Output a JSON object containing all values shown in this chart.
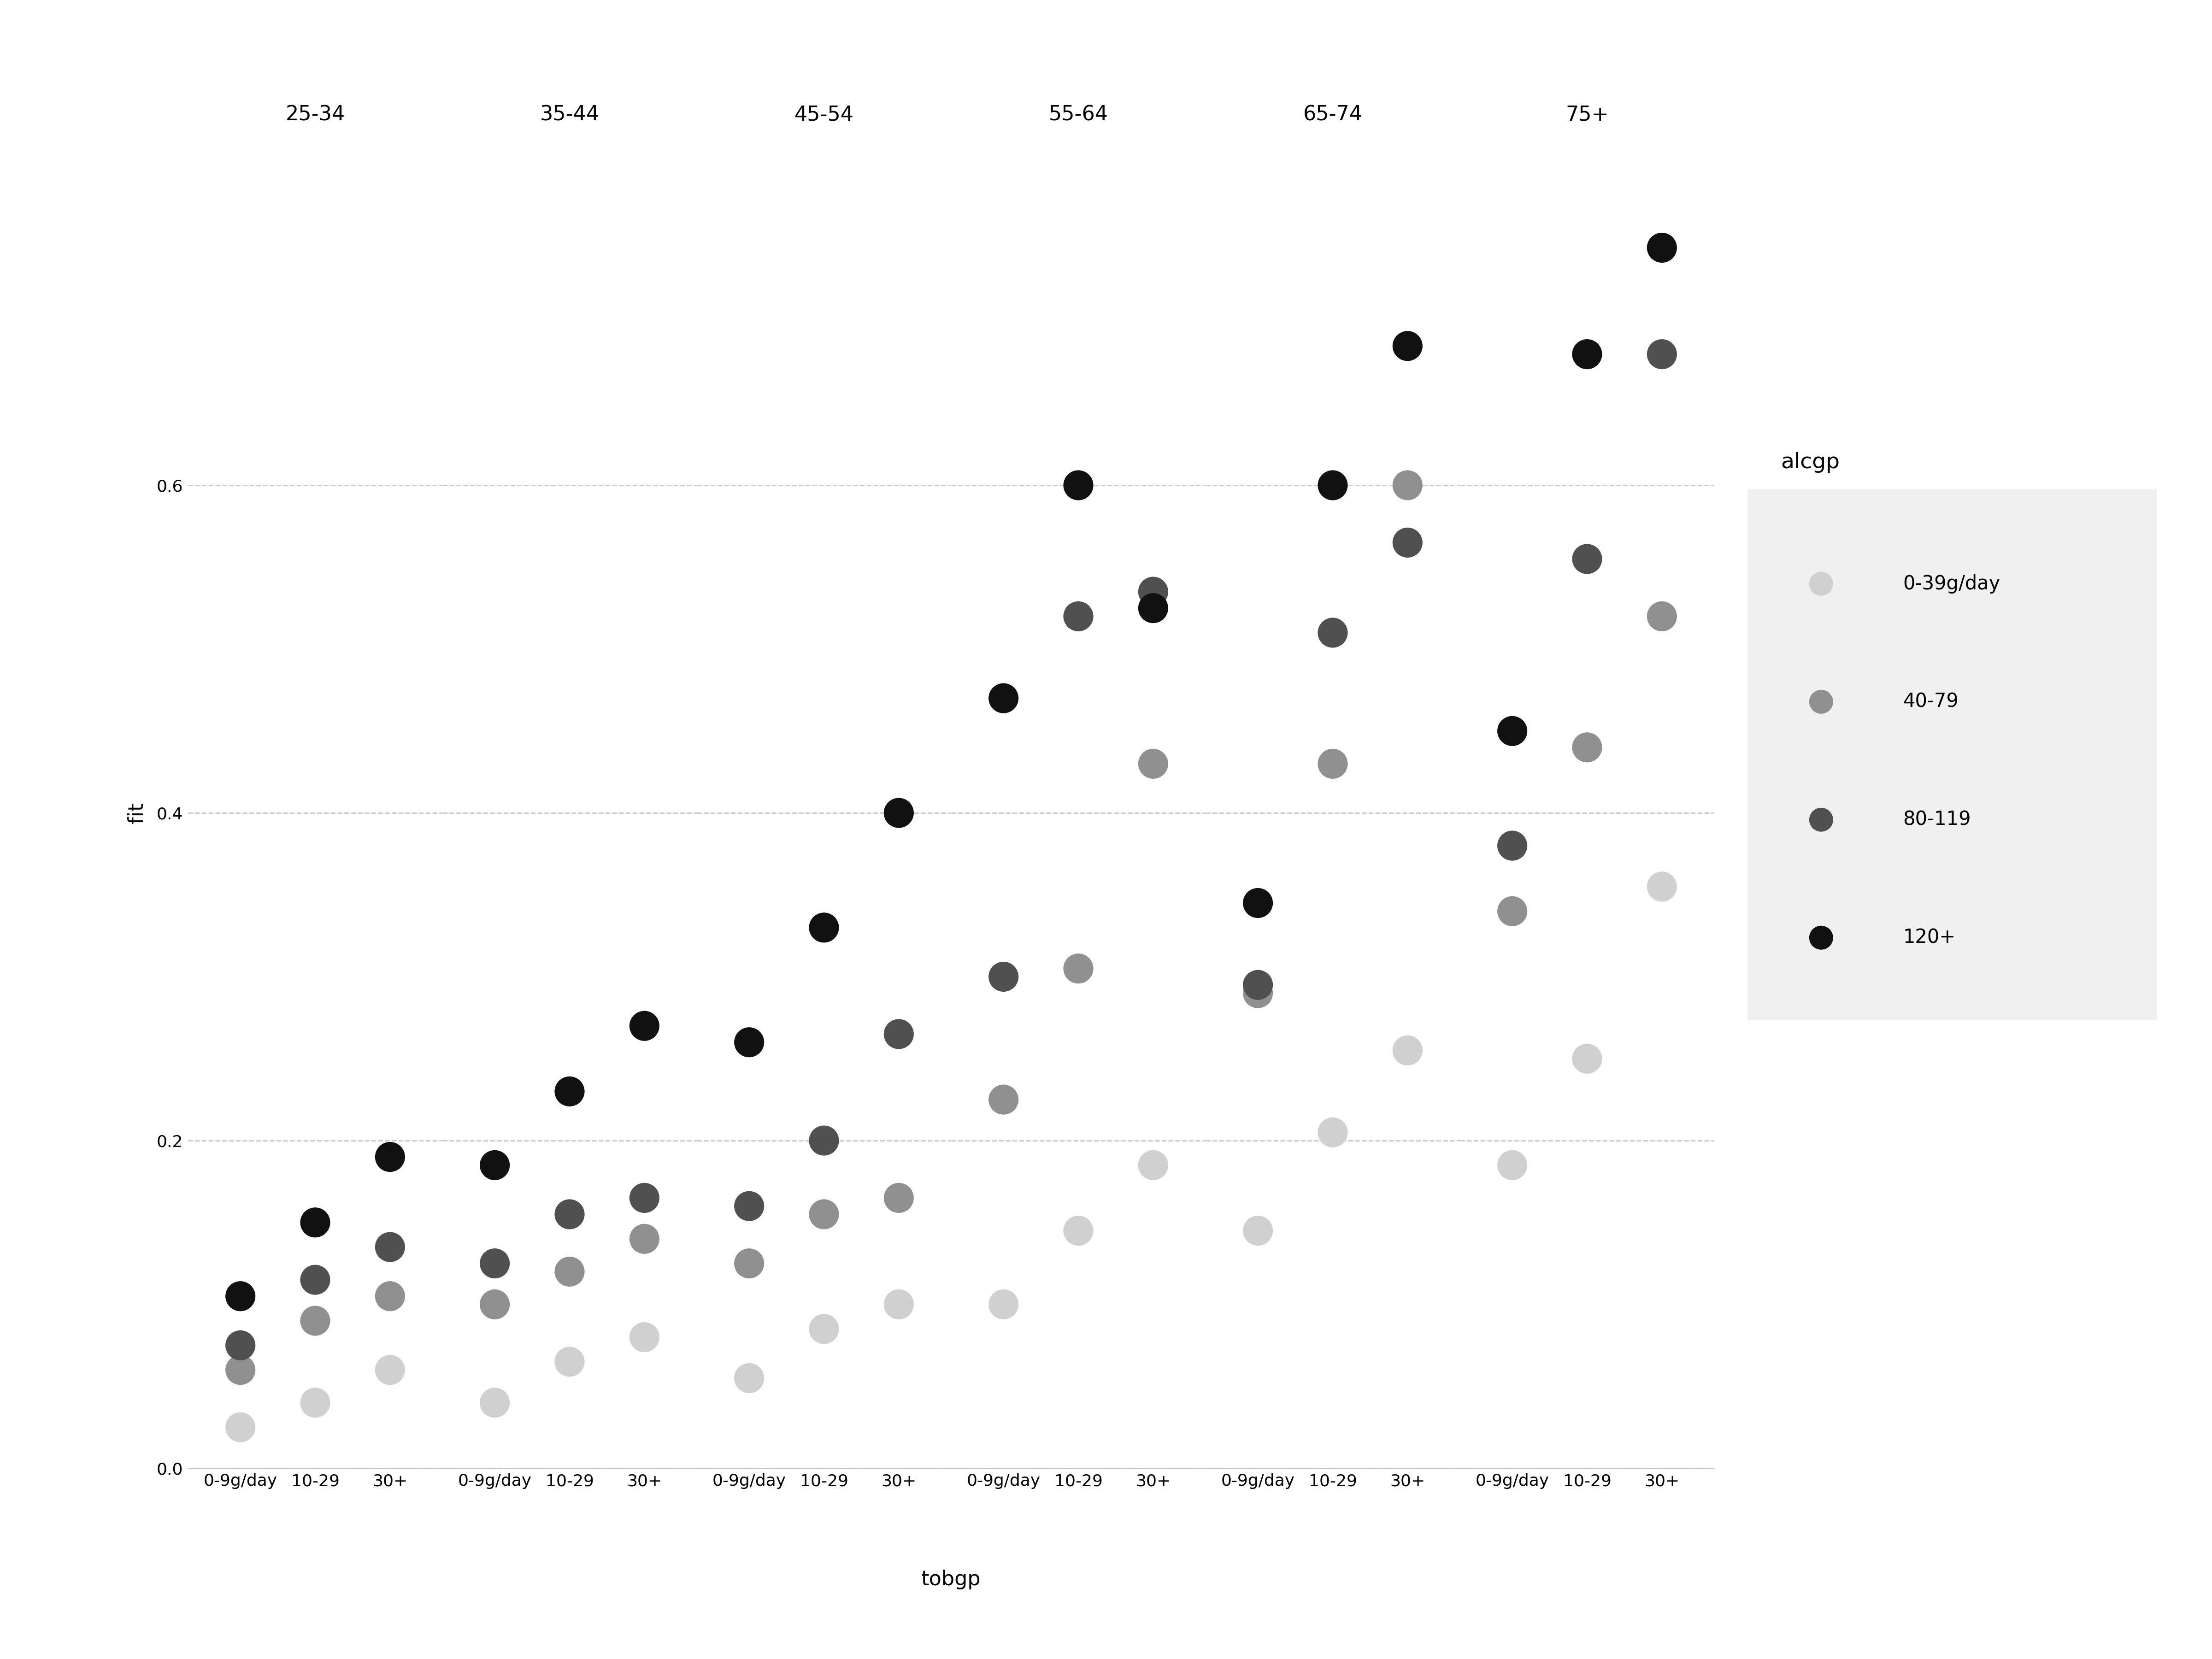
{
  "age_groups": [
    "25-34",
    "35-44",
    "45-54",
    "55-64",
    "65-74",
    "75+"
  ],
  "tobgp_cats": [
    "0-9g/day",
    "10-29",
    "30+"
  ],
  "alcgp_cats": [
    "0-39g/day",
    "40-79",
    "80-119",
    "120+"
  ],
  "alcgp_colors": [
    "#d0d0d0",
    "#909090",
    "#505050",
    "#111111"
  ],
  "ylabel": "fit",
  "xlabel": "tobgp",
  "legend_title": "alcgp",
  "background_color": "#ffffff",
  "grid_color": "#c8c8c8",
  "legend_bg_color": "#f0f0f0",
  "fit_values": {
    "25-34": {
      "0-39g/day": [
        0.025,
        0.04,
        0.06
      ],
      "40-79": [
        0.06,
        0.09,
        0.105
      ],
      "80-119": [
        0.075,
        0.115,
        0.135
      ],
      "120+": [
        0.105,
        0.15,
        0.19
      ]
    },
    "35-44": {
      "0-39g/day": [
        0.04,
        0.065,
        0.08
      ],
      "40-79": [
        0.1,
        0.12,
        0.14
      ],
      "80-119": [
        0.125,
        0.155,
        0.165
      ],
      "120+": [
        0.185,
        0.23,
        0.27
      ]
    },
    "45-54": {
      "0-39g/day": [
        0.055,
        0.085,
        0.1
      ],
      "40-79": [
        0.125,
        0.155,
        0.165
      ],
      "80-119": [
        0.16,
        0.2,
        0.265
      ],
      "120+": [
        0.26,
        0.33,
        0.4
      ]
    },
    "55-64": {
      "0-39g/day": [
        0.1,
        0.145,
        0.185
      ],
      "40-79": [
        0.225,
        0.305,
        0.43
      ],
      "80-119": [
        0.3,
        0.52,
        0.535
      ],
      "120+": [
        0.47,
        0.6,
        0.525
      ]
    },
    "65-74": {
      "0-39g/day": [
        0.145,
        0.205,
        0.255
      ],
      "40-79": [
        0.29,
        0.43,
        0.6
      ],
      "80-119": [
        0.295,
        0.51,
        0.565
      ],
      "120+": [
        0.345,
        0.6,
        0.685
      ]
    },
    "75+": {
      "0-39g/day": [
        0.185,
        0.25,
        0.355
      ],
      "40-79": [
        0.34,
        0.44,
        0.52
      ],
      "80-119": [
        0.38,
        0.555,
        0.68
      ],
      "120+": [
        0.45,
        0.68,
        0.745
      ]
    }
  },
  "ylim": [
    0.0,
    0.8
  ],
  "yticks": [
    0.0,
    0.2,
    0.4,
    0.6
  ],
  "dot_size": 2200,
  "title_fontsize": 32,
  "axis_label_fontsize": 32,
  "tick_fontsize": 26,
  "legend_fontsize": 30,
  "legend_title_fontsize": 34
}
